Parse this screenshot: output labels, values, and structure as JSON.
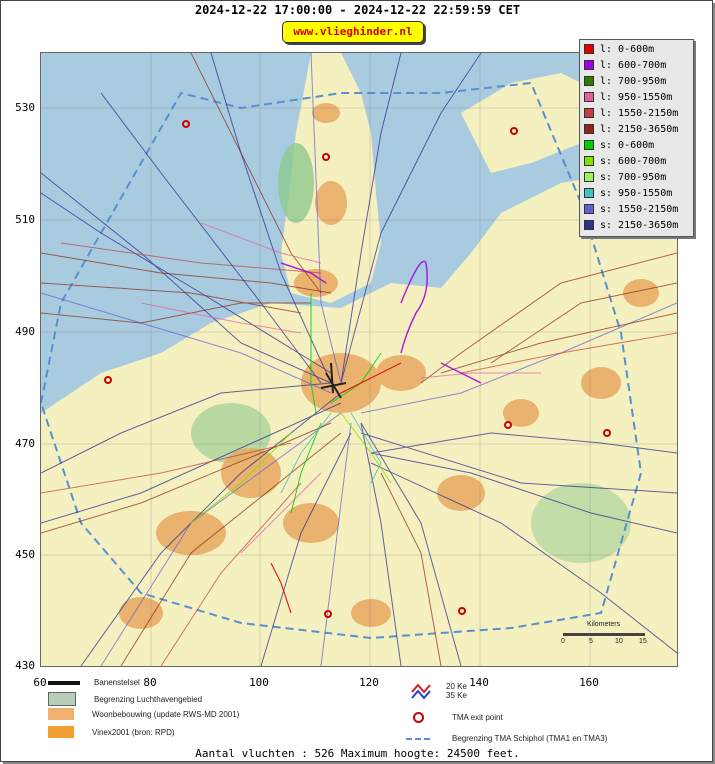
{
  "header": {
    "title": "2024-12-22 17:00:00 - 2024-12-22 22:59:59 CET",
    "brand": "www.vlieghinder.nl"
  },
  "axes": {
    "y_ticks": [
      "530",
      "510",
      "490",
      "470",
      "450",
      "430"
    ],
    "x_ticks": [
      "60",
      "80",
      "100",
      "120",
      "140",
      "160"
    ]
  },
  "legend": {
    "items": [
      {
        "label": "l: 0-600m",
        "color": "#e00000"
      },
      {
        "label": "l: 600-700m",
        "color": "#a000e0"
      },
      {
        "label": "l: 700-950m",
        "color": "#2e7d00"
      },
      {
        "label": "l: 950-1550m",
        "color": "#e060a0"
      },
      {
        "label": "l: 1550-2150m",
        "color": "#c04040"
      },
      {
        "label": "l: 2150-3650m",
        "color": "#8b2a14"
      },
      {
        "label": "s: 0-600m",
        "color": "#00d000"
      },
      {
        "label": "s: 600-700m",
        "color": "#80e000"
      },
      {
        "label": "s: 700-950m",
        "color": "#a0f060"
      },
      {
        "label": "s: 950-1550m",
        "color": "#40c0c0"
      },
      {
        "label": "s: 1550-2150m",
        "color": "#6060d0"
      },
      {
        "label": "s: 2150-3650m",
        "color": "#303090"
      }
    ]
  },
  "bottom_legend": {
    "banenstelsel": "Banenstelsel",
    "luchthaven": "Begrenzing Luchthavengebied",
    "woonbebouwing": "Woonbebouwing (update RWS-MD 2001)",
    "vinex": "Vinex2001 (bron: RPD)",
    "ke20": "20 Ke",
    "ke35": "35 Ke",
    "tma_exit": "TMA exit point",
    "tma_boundary": "Begrenzing TMA Schiphol  (TMA1 en TMA3)"
  },
  "scale": {
    "label": "Kilometers",
    "ticks": [
      "0",
      "5",
      "10",
      "15"
    ]
  },
  "footer": {
    "text": "Aantal vluchten : 526 Maximum hoogte: 24500 feet."
  },
  "colors": {
    "water": "#a9cbe0",
    "land": "#f5f0bf",
    "urban": "#e8a860",
    "green": "#8fc98f",
    "tma_boundary": "#5a8fcf",
    "exit_point": "#cc0000"
  }
}
